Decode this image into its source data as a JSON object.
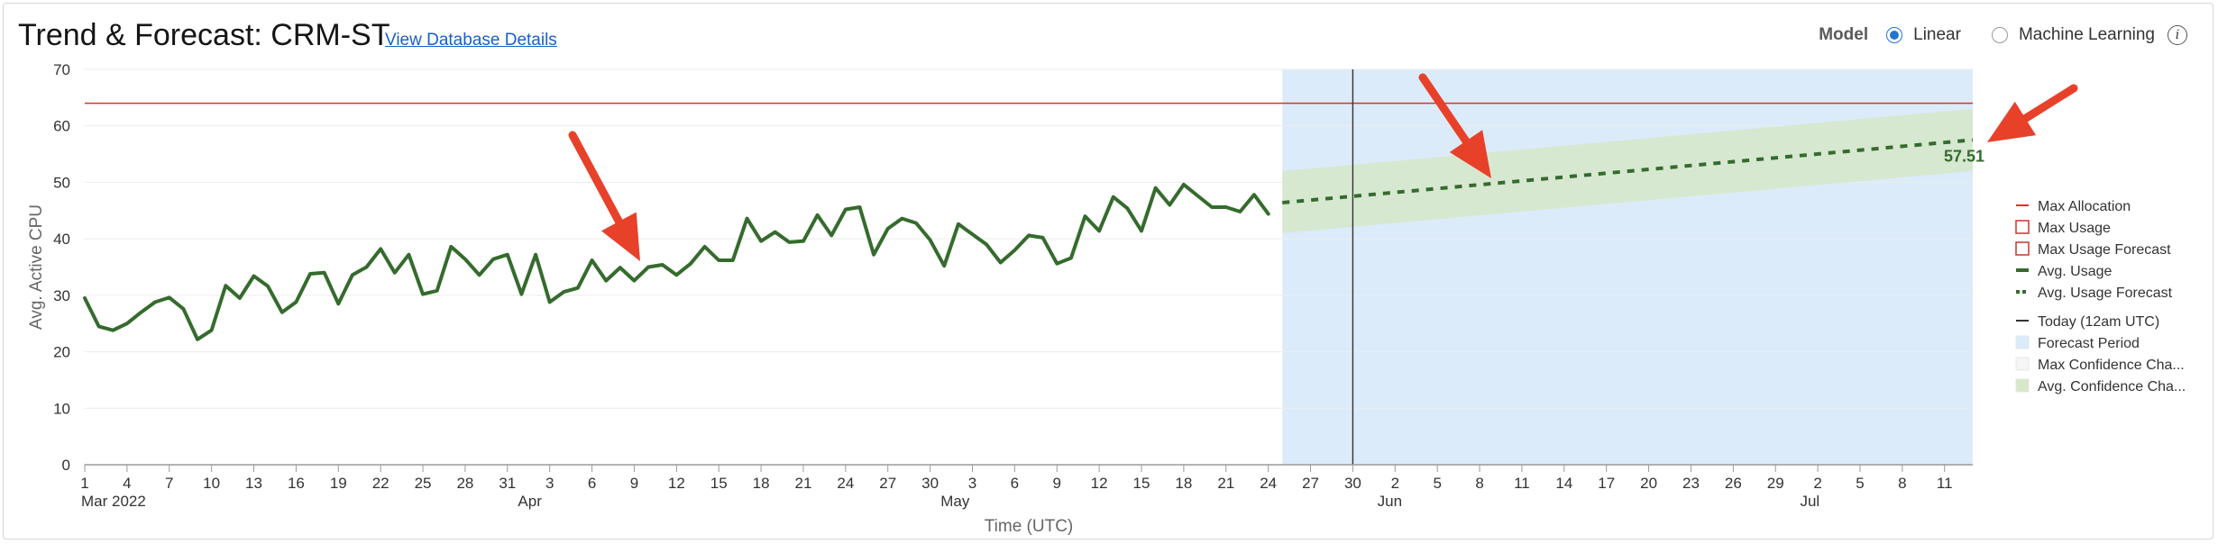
{
  "header": {
    "title": "Trend & Forecast: CRM-ST",
    "db_link": "View Database Details",
    "model_label": "Model",
    "model_options": [
      {
        "label": "Linear",
        "selected": true
      },
      {
        "label": "Machine Learning",
        "selected": false
      }
    ],
    "info_icon": "info-icon"
  },
  "chart_data": {
    "type": "line",
    "xlabel": "Time (UTC)",
    "ylabel": "Avg. Active CPU",
    "ylim": [
      0,
      70
    ],
    "yticks": [
      0,
      10,
      20,
      30,
      40,
      50,
      60,
      70
    ],
    "x_start": "2022-03-01",
    "x_end": "2022-07-13",
    "xtick_day_labels": [
      "1",
      "4",
      "7",
      "10",
      "13",
      "16",
      "19",
      "22",
      "25",
      "28",
      "31",
      "3",
      "6",
      "9",
      "12",
      "15",
      "18",
      "21",
      "24",
      "27",
      "30",
      "3",
      "6",
      "9",
      "12",
      "15",
      "18",
      "21",
      "24",
      "27",
      "30",
      "2",
      "5",
      "8",
      "11",
      "14",
      "17",
      "20",
      "23",
      "26",
      "29",
      "2",
      "5",
      "8",
      "11"
    ],
    "month_labels": [
      {
        "date": "2022-03-01",
        "label": "Mar 2022"
      },
      {
        "date": "2022-04-01",
        "label": "Apr"
      },
      {
        "date": "2022-05-01",
        "label": "May"
      },
      {
        "date": "2022-06-01",
        "label": "Jun"
      },
      {
        "date": "2022-07-01",
        "label": "Jul"
      }
    ],
    "max_allocation": 64,
    "forecast_period": {
      "start": "2022-05-25",
      "end": "2022-07-13"
    },
    "today": "2022-05-30",
    "series": [
      {
        "name": "Avg. Usage",
        "color": "#356b2d",
        "start_date": "2022-03-01",
        "values": [
          29.5,
          24.5,
          23.8,
          25.0,
          27.0,
          28.8,
          29.6,
          27.6,
          22.2,
          23.8,
          31.7,
          29.5,
          33.4,
          31.6,
          27.0,
          28.8,
          33.8,
          34.0,
          28.5,
          33.6,
          35.0,
          38.2,
          34.0,
          37.2,
          30.2,
          30.8,
          38.6,
          36.4,
          33.6,
          36.4,
          37.2,
          30.2,
          37.2,
          28.8,
          30.6,
          31.3,
          36.2,
          32.6,
          34.9,
          32.6,
          35.0,
          35.4,
          33.6,
          35.6,
          38.6,
          36.2,
          36.2,
          43.6,
          39.6,
          41.2,
          39.4,
          39.6,
          44.2,
          40.6,
          45.2,
          45.6,
          37.2,
          41.8,
          43.6,
          42.8,
          39.8,
          35.2,
          42.6,
          40.8,
          39.0,
          35.8,
          38.0,
          40.6,
          40.2,
          35.6,
          36.6,
          44.0,
          41.4,
          47.4,
          45.4,
          41.4,
          49.0,
          46.0,
          49.6,
          47.6,
          45.6,
          45.6,
          44.8,
          47.8,
          44.4
        ]
      },
      {
        "name": "Avg. Usage Forecast",
        "color": "#356b2d",
        "dashed": true,
        "points": [
          {
            "date": "2022-05-25",
            "value": 46.4
          },
          {
            "date": "2022-07-13",
            "value": 57.51
          }
        ],
        "end_label": "57.51"
      }
    ],
    "confidence_band": {
      "name": "Avg. Confidence Channel",
      "start": {
        "date": "2022-05-25",
        "low": 41.0,
        "high": 52.0
      },
      "end": {
        "date": "2022-07-13",
        "low": 52.0,
        "high": 63.0
      }
    },
    "legend": {
      "position": "right",
      "items": [
        {
          "label": "Max Allocation",
          "kind": "line",
          "color": "#d9342b"
        },
        {
          "label": "Max Usage",
          "kind": "box",
          "color": "#c7372f"
        },
        {
          "label": "Max Usage Forecast",
          "kind": "box",
          "color": "#c7372f"
        },
        {
          "label": "Avg. Usage",
          "kind": "line",
          "color": "#356b2d"
        },
        {
          "label": "Avg. Usage Forecast",
          "kind": "dash",
          "color": "#356b2d"
        },
        {
          "label": "Today (12am UTC)",
          "kind": "line",
          "color": "#333333",
          "gap_before": true
        },
        {
          "label": "Forecast Period",
          "kind": "fill",
          "color": "#dcebfa"
        },
        {
          "label": "Max Confidence Cha...",
          "kind": "fill",
          "color": "#f6f6f6"
        },
        {
          "label": "Avg. Confidence Cha...",
          "kind": "fill",
          "color": "#d6e8c9"
        }
      ]
    },
    "annotations": [
      {
        "kind": "arrow",
        "color": "#e8412a",
        "target": "historical-point"
      },
      {
        "kind": "arrow",
        "color": "#e8412a",
        "target": "forecast-line"
      },
      {
        "kind": "arrow",
        "color": "#e8412a",
        "target": "forecast-end-value"
      }
    ],
    "colors": {
      "grid": "#ececec",
      "axis": "#9a9a9a",
      "max_allocation": "#d9342b",
      "forecast_fill": "#dcebfa",
      "band_fill": "#d6e8c9",
      "arrow": "#e8412a"
    }
  }
}
